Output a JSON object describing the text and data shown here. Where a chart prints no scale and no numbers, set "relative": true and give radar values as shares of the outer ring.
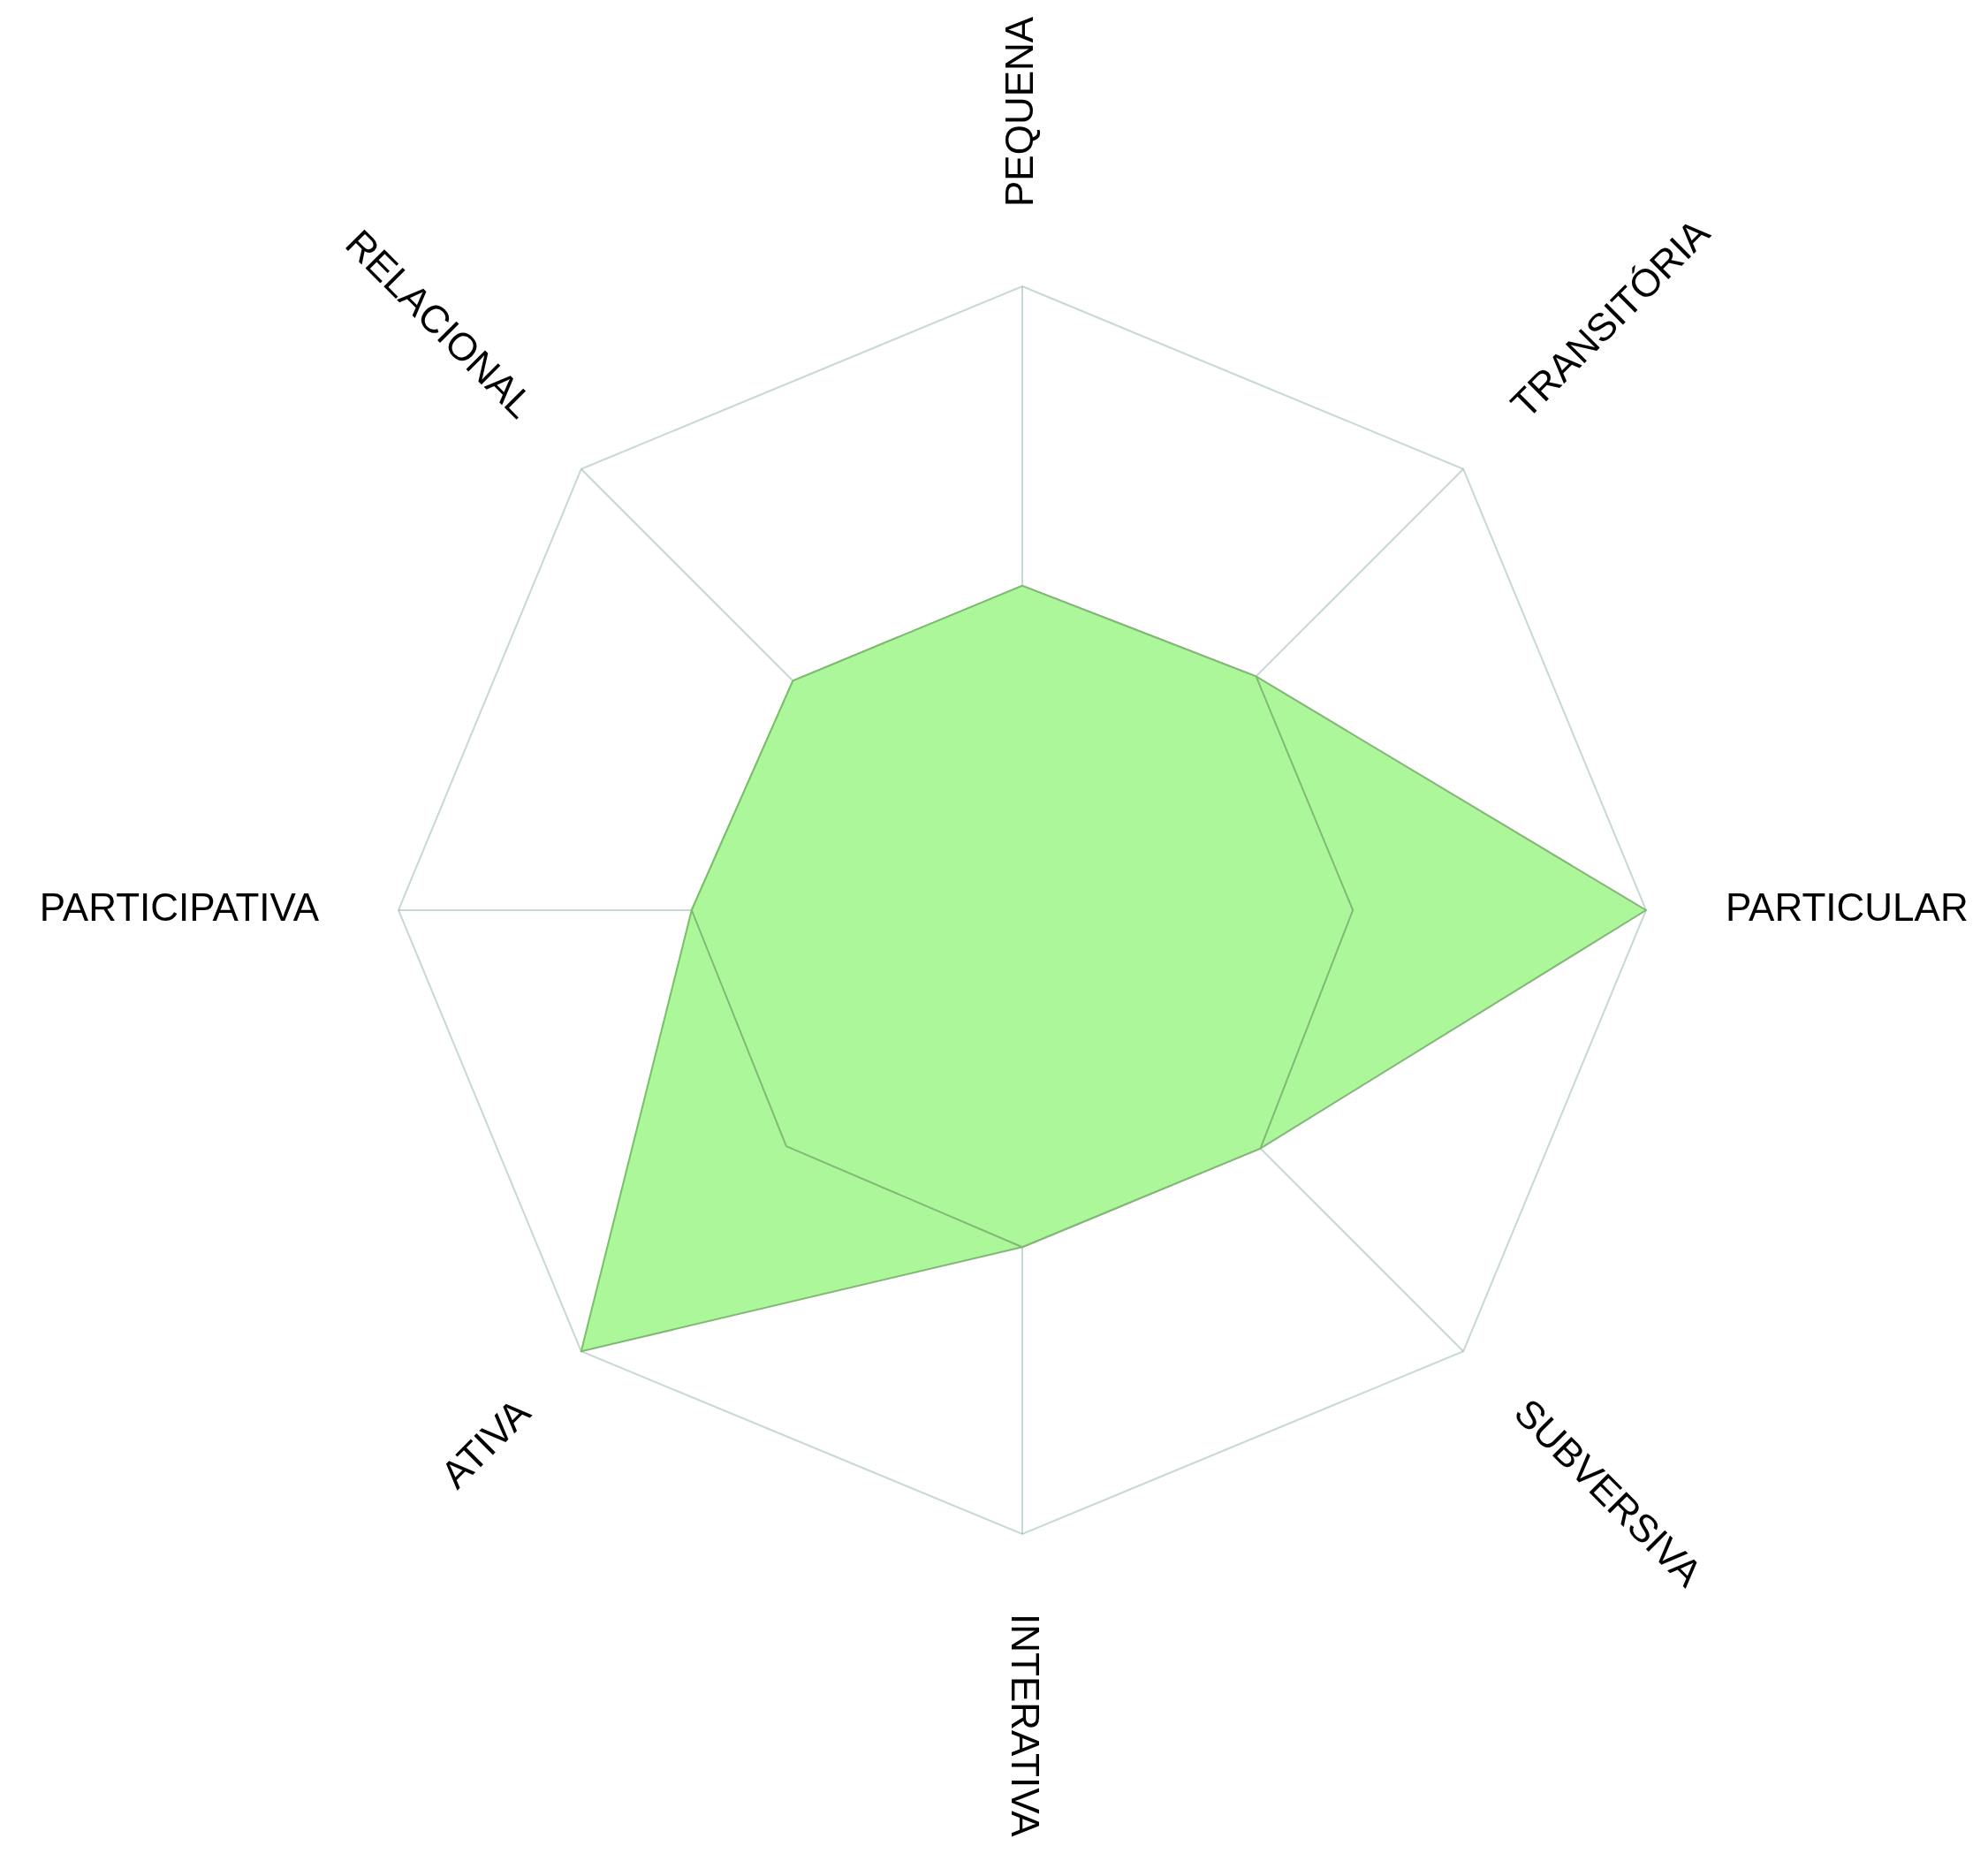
{
  "chart_data": {
    "type": "radar",
    "relative": true,
    "categories": [
      "PEQUENA",
      "TRANSITÓRIA",
      "PARTICULAR",
      "SUBVERSIVA",
      "INTERATIVA",
      "ATIVA",
      "PARTICIPATIVA",
      "RELACIONAL"
    ],
    "series": [
      {
        "color": "#acf79a",
        "values": [
          0.52,
          0.53,
          1,
          0.54,
          0.54,
          1,
          0.53,
          0.52
        ]
      },
      {
        "color": "#acf79a",
        "values": [
          0.52,
          0.53,
          0.53,
          0.54,
          0.54,
          0.535,
          0.53,
          0.52
        ]
      }
    ],
    "grid": true,
    "legend": false
  }
}
